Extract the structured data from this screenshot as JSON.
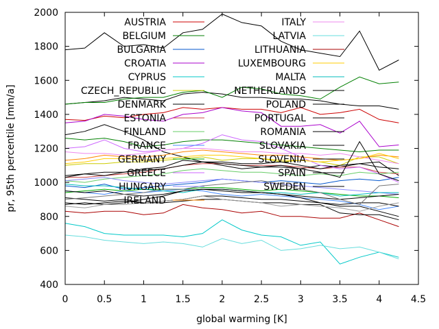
{
  "chart_data": {
    "type": "line",
    "title": "",
    "xlabel": "global warming [K]",
    "ylabel": "pr, 95th percentile [mm/a]",
    "xlim": [
      0,
      4.5
    ],
    "ylim": [
      400,
      2000
    ],
    "xticks": [
      "0",
      "0.5",
      "1",
      "1.5",
      "2",
      "2.5",
      "3",
      "3.5",
      "4",
      "4.5"
    ],
    "yticks": [
      "400",
      "600",
      "800",
      "1000",
      "1200",
      "1400",
      "1600",
      "1800",
      "2000"
    ],
    "grid": false,
    "legend_placement": "inside top, two columns",
    "x": [
      0,
      0.25,
      0.5,
      0.75,
      1,
      1.25,
      1.5,
      1.75,
      2,
      2.25,
      2.5,
      2.75,
      3,
      3.25,
      3.5,
      3.75,
      4,
      4.25
    ],
    "series": [
      {
        "name": "AUSTRIA",
        "color": "#cc0000",
        "values": [
          1370,
          1365,
          1390,
          1380,
          1400,
          1410,
          1440,
          1430,
          1440,
          1430,
          1430,
          1410,
          1440,
          1400,
          1410,
          1430,
          1370,
          1350
        ]
      },
      {
        "name": "BELGIUM",
        "color": "#007f00",
        "values": [
          1260,
          1250,
          1260,
          1240,
          1210,
          1220,
          1240,
          1250,
          1250,
          1240,
          1230,
          1220,
          1210,
          1200,
          1190,
          1180,
          1190,
          1190
        ]
      },
      {
        "name": "BULGARIA",
        "color": "#0055cc",
        "values": [
          980,
          970,
          990,
          960,
          970,
          980,
          990,
          1000,
          1020,
          1010,
          1000,
          1010,
          1000,
          990,
          1010,
          1020,
          1010,
          1030
        ]
      },
      {
        "name": "CROATIA",
        "color": "#aa00cc",
        "values": [
          1350,
          1360,
          1400,
          1390,
          1370,
          1360,
          1400,
          1410,
          1440,
          1420,
          1410,
          1330,
          1330,
          1340,
          1290,
          1360,
          1210,
          1220
        ]
      },
      {
        "name": "CYPRUS",
        "color": "#00c8c8",
        "values": [
          760,
          740,
          700,
          690,
          690,
          690,
          680,
          700,
          780,
          720,
          690,
          680,
          630,
          650,
          520,
          560,
          590,
          560
        ]
      },
      {
        "name": "CZECH_REPUBLIC",
        "color": "#cccc00",
        "values": [
          1100,
          1110,
          1110,
          1120,
          1120,
          1130,
          1140,
          1150,
          1130,
          1140,
          1140,
          1120,
          1130,
          1120,
          1100,
          1150,
          1150,
          1110
        ]
      },
      {
        "name": "DENMARK",
        "color": "#000000",
        "values": [
          1280,
          1300,
          1340,
          1300,
          1250,
          1180,
          1150,
          1120,
          1100,
          1080,
          1090,
          1090,
          1080,
          1100,
          1090,
          1110,
          1120,
          1040
        ]
      },
      {
        "name": "ESTONIA",
        "color": "#cc4444",
        "values": [
          1030,
          1030,
          1040,
          1050,
          1060,
          1080,
          1100,
          1110,
          1110,
          1100,
          1100,
          1100,
          1090,
          1080,
          1090,
          1090,
          1060,
          1050
        ]
      },
      {
        "name": "FINLAND",
        "color": "#66cc66",
        "values": [
          1010,
          1000,
          1020,
          1030,
          1040,
          1050,
          1070,
          1080,
          1070,
          1060,
          1060,
          1050,
          1040,
          1050,
          1040,
          1060,
          1050,
          1060
        ]
      },
      {
        "name": "FRANCE",
        "color": "#4488ff",
        "values": [
          950,
          940,
          930,
          950,
          940,
          950,
          960,
          950,
          930,
          920,
          930,
          920,
          910,
          900,
          890,
          870,
          840,
          860
        ]
      },
      {
        "name": "GERMANY",
        "color": "#00aa00",
        "values": [
          940,
          950,
          960,
          950,
          960,
          960,
          960,
          970,
          970,
          960,
          950,
          960,
          950,
          940,
          930,
          920,
          920,
          910
        ]
      },
      {
        "name": "GREECE",
        "color": "#cc66ff",
        "values": [
          1200,
          1210,
          1250,
          1200,
          1180,
          1190,
          1200,
          1230,
          1280,
          1250,
          1240,
          1200,
          1150,
          1100,
          1080,
          1090,
          1050,
          1000
        ]
      },
      {
        "name": "HUNGARY",
        "color": "#8888ff",
        "values": [
          1010,
          1020,
          1030,
          1010,
          1000,
          990,
          1000,
          1010,
          1020,
          1010,
          1000,
          990,
          980,
          970,
          960,
          950,
          940,
          930
        ]
      },
      {
        "name": "IRELAND",
        "color": "#ff8800",
        "values": [
          1130,
          1140,
          1160,
          1150,
          1150,
          1160,
          1180,
          1190,
          1180,
          1170,
          1160,
          1160,
          1150,
          1140,
          1130,
          1140,
          1160,
          1150
        ]
      },
      {
        "name": "ITALY",
        "color": "#ee88ee",
        "values": [
          1180,
          1170,
          1170,
          1160,
          1170,
          1190,
          1200,
          1200,
          1190,
          1180,
          1180,
          1170,
          1170,
          1160,
          1170,
          1150,
          1130,
          1110
        ]
      },
      {
        "name": "LATVIA",
        "color": "#66dddd",
        "values": [
          690,
          680,
          660,
          650,
          640,
          650,
          640,
          620,
          670,
          640,
          660,
          600,
          610,
          630,
          610,
          620,
          590,
          550
        ]
      },
      {
        "name": "LITHUANIA",
        "color": "#aa0000",
        "values": [
          830,
          820,
          830,
          830,
          810,
          820,
          870,
          850,
          840,
          820,
          830,
          800,
          800,
          790,
          790,
          820,
          780,
          740
        ]
      },
      {
        "name": "LUXEMBOURG",
        "color": "#ffcc00",
        "values": [
          1110,
          1120,
          1140,
          1140,
          1130,
          1140,
          1150,
          1160,
          1160,
          1150,
          1140,
          1130,
          1130,
          1120,
          1130,
          1140,
          1170,
          1140
        ]
      },
      {
        "name": "MALTA",
        "color": "#00bbbb",
        "values": [
          990,
          980,
          980,
          970,
          960,
          950,
          940,
          960,
          960,
          950,
          940,
          940,
          930,
          940,
          920,
          930,
          940,
          940
        ]
      },
      {
        "name": "NETHERLANDS",
        "color": "#000000",
        "values": [
          1040,
          1050,
          1060,
          1060,
          1070,
          1080,
          1100,
          1120,
          1120,
          1110,
          1110,
          1120,
          1100,
          1080,
          1100,
          1110,
          1090,
          1080
        ]
      },
      {
        "name": "POLAND",
        "color": "#000000",
        "values": [
          1460,
          1470,
          1480,
          1500,
          1490,
          1480,
          1520,
          1530,
          1520,
          1500,
          1500,
          1490,
          1490,
          1480,
          1460,
          1450,
          1450,
          1430
        ]
      },
      {
        "name": "PORTUGAL",
        "color": "#000000",
        "values": [
          950,
          940,
          950,
          930,
          920,
          930,
          950,
          960,
          950,
          940,
          940,
          930,
          920,
          910,
          900,
          910,
          920,
          930
        ]
      },
      {
        "name": "ROMANIA",
        "color": "#000000",
        "values": [
          910,
          900,
          890,
          900,
          880,
          890,
          900,
          920,
          920,
          910,
          900,
          900,
          890,
          880,
          870,
          880,
          880,
          860
        ]
      },
      {
        "name": "SLOVAKIA",
        "color": "#000000",
        "values": [
          870,
          880,
          870,
          880,
          900,
          920,
          950,
          960,
          960,
          950,
          940,
          930,
          910,
          880,
          860,
          860,
          830,
          800
        ]
      },
      {
        "name": "SLOVENIA",
        "color": "#000000",
        "values": [
          1030,
          1050,
          1040,
          1060,
          1080,
          1090,
          1130,
          1120,
          1110,
          1100,
          1090,
          1100,
          1080,
          1060,
          1030,
          1240,
          1050,
          1010
        ]
      },
      {
        "name": "SPAIN",
        "color": "#000000",
        "values": [
          880,
          870,
          880,
          890,
          880,
          880,
          890,
          900,
          900,
          890,
          880,
          880,
          870,
          870,
          820,
          810,
          810,
          780
        ]
      },
      {
        "name": "SWEDEN",
        "color": "#000000",
        "values": [
          1780,
          1790,
          1880,
          1800,
          1810,
          1790,
          1880,
          1900,
          1990,
          1940,
          1920,
          1830,
          1780,
          1760,
          1740,
          1890,
          1660,
          1720
        ]
      },
      {
        "name": "",
        "color": "#007f00",
        "values": [
          1460,
          1470,
          1470,
          1490,
          1500,
          1500,
          1530,
          1540,
          1500,
          1560,
          1550,
          1520,
          1510,
          1490,
          1560,
          1620,
          1580,
          1590
        ]
      },
      {
        "name": "",
        "color": "#777777",
        "values": [
          900,
          910,
          920,
          930,
          940,
          960,
          960,
          980,
          990,
          1000,
          1010,
          990,
          960,
          940,
          900,
          870,
          980,
          990
        ]
      },
      {
        "name": "",
        "color": "#999999",
        "values": [
          860,
          850,
          870,
          870,
          880,
          890,
          900,
          920,
          900,
          890,
          880,
          860,
          870,
          860,
          850,
          830,
          860,
          880
        ]
      }
    ]
  }
}
